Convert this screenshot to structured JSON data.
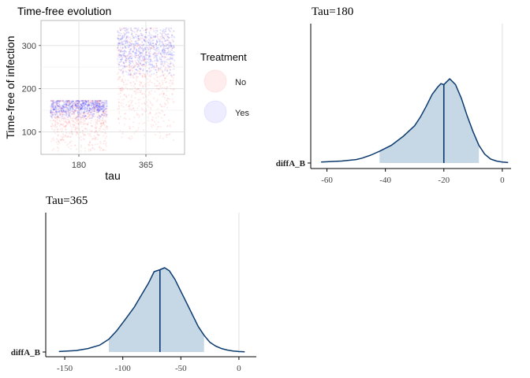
{
  "chart_data": [
    {
      "type": "scatter",
      "title": "Time-free evolution",
      "xlabel": "tau",
      "ylabel": "Time-free of infection",
      "categories": [
        "180",
        "365"
      ],
      "y_ticks": [
        100,
        200,
        300
      ],
      "ylim": [
        48,
        358
      ],
      "grid": true,
      "legend": {
        "title": "Treatment",
        "placement": "right",
        "entries": [
          {
            "name": "No",
            "color": "#ff0000"
          },
          {
            "name": "Yes",
            "color": "#0000ff"
          }
        ]
      },
      "series": [
        {
          "name": "No",
          "color": "#ff0000",
          "groups": [
            {
              "category": "180",
              "min": 55,
              "max": 172,
              "center": 140
            },
            {
              "category": "365",
              "min": 80,
              "max": 340,
              "center": 240
            }
          ]
        },
        {
          "name": "Yes",
          "color": "#0000ff",
          "groups": [
            {
              "category": "180",
              "min": 130,
              "max": 172,
              "center": 160
            },
            {
              "category": "365",
              "min": 230,
              "max": 340,
              "center": 295
            }
          ]
        }
      ]
    },
    {
      "type": "area",
      "title": "Tau=180",
      "ylabel": "diffA_B",
      "x_ticks": [
        -60,
        -40,
        -20,
        0
      ],
      "xlim": [
        -65,
        3
      ],
      "median": -20,
      "interval": [
        -42,
        -8
      ],
      "fill_color": "#c6d8e6",
      "line_color": "#0b3a6e",
      "density": {
        "x": [
          -62,
          -55,
          -50,
          -48,
          -45,
          -42,
          -38,
          -34,
          -30,
          -28,
          -26,
          -24,
          -22,
          -21,
          -20,
          -19,
          -18,
          -16,
          -14,
          -12,
          -10,
          -8,
          -6,
          -4,
          -2,
          0,
          2
        ],
        "y": [
          0.01,
          0.02,
          0.035,
          0.05,
          0.08,
          0.12,
          0.18,
          0.27,
          0.38,
          0.47,
          0.58,
          0.7,
          0.78,
          0.81,
          0.8,
          0.83,
          0.86,
          0.8,
          0.66,
          0.48,
          0.32,
          0.18,
          0.09,
          0.04,
          0.02,
          0.01,
          0.005
        ]
      }
    },
    {
      "type": "area",
      "title": "Tau=365",
      "ylabel": "diffA_B",
      "x_ticks": [
        -150,
        -100,
        -50,
        0
      ],
      "xlim": [
        -165,
        15
      ],
      "median": -68,
      "interval": [
        -112,
        -30
      ],
      "fill_color": "#c6d8e6",
      "line_color": "#0b3a6e",
      "density": {
        "x": [
          -155,
          -140,
          -130,
          -120,
          -112,
          -105,
          -98,
          -90,
          -83,
          -78,
          -73,
          -68,
          -64,
          -60,
          -55,
          -50,
          -45,
          -40,
          -35,
          -30,
          -25,
          -20,
          -15,
          -10,
          -5,
          0,
          5
        ],
        "y": [
          0.005,
          0.015,
          0.035,
          0.07,
          0.13,
          0.22,
          0.33,
          0.46,
          0.6,
          0.7,
          0.82,
          0.84,
          0.86,
          0.83,
          0.74,
          0.62,
          0.5,
          0.38,
          0.26,
          0.17,
          0.1,
          0.06,
          0.035,
          0.02,
          0.01,
          0.005,
          0.002
        ]
      }
    }
  ]
}
